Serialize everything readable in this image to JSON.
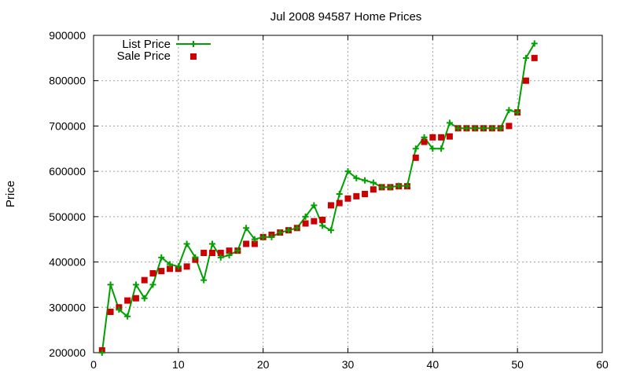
{
  "chart_data": {
    "type": "line",
    "title": "Jul 2008 94587 Home Prices",
    "xlabel": "",
    "ylabel": "Price",
    "xlim": [
      0,
      60
    ],
    "ylim": [
      200000,
      900000
    ],
    "x_ticks": [
      "0",
      "10",
      "20",
      "30",
      "40",
      "50",
      "60"
    ],
    "y_ticks": [
      "200000",
      "300000",
      "400000",
      "500000",
      "600000",
      "700000",
      "800000",
      "900000"
    ],
    "grid": true,
    "legend_position": "top-left",
    "series": [
      {
        "name": "List Price",
        "style": "line-plus",
        "color": "#00a000",
        "x": [
          1,
          2,
          3,
          4,
          5,
          6,
          7,
          8,
          9,
          10,
          11,
          12,
          13,
          14,
          15,
          16,
          17,
          18,
          19,
          20,
          21,
          22,
          23,
          24,
          25,
          26,
          27,
          28,
          29,
          30,
          31,
          32,
          33,
          34,
          35,
          36,
          37,
          38,
          39,
          40,
          41,
          42,
          43,
          44,
          45,
          46,
          47,
          48,
          49,
          50,
          51,
          52
        ],
        "y": [
          200000,
          350000,
          295000,
          280000,
          350000,
          320000,
          350000,
          410000,
          395000,
          390000,
          440000,
          410000,
          360000,
          440000,
          410000,
          415000,
          425000,
          475000,
          450000,
          455000,
          455000,
          465000,
          470000,
          475000,
          500000,
          525000,
          480000,
          470000,
          550000,
          600000,
          585000,
          580000,
          575000,
          565000,
          565000,
          568000,
          568000,
          650000,
          675000,
          650000,
          650000,
          707000,
          695000,
          695000,
          695000,
          695000,
          695000,
          695000,
          735000,
          730000,
          850000,
          882000
        ]
      },
      {
        "name": "Sale Price",
        "style": "square-points",
        "color": "#cc0000",
        "x": [
          1,
          2,
          3,
          4,
          5,
          6,
          7,
          8,
          9,
          10,
          11,
          12,
          13,
          14,
          15,
          16,
          17,
          18,
          19,
          20,
          21,
          22,
          23,
          24,
          25,
          26,
          27,
          28,
          29,
          30,
          31,
          32,
          33,
          34,
          35,
          36,
          37,
          38,
          39,
          40,
          41,
          42,
          43,
          44,
          45,
          46,
          47,
          48,
          49,
          50,
          51,
          52
        ],
        "y": [
          205000,
          290000,
          300000,
          315000,
          320000,
          360000,
          375000,
          380000,
          385000,
          385000,
          390000,
          405000,
          420000,
          420000,
          420000,
          425000,
          425000,
          440000,
          440000,
          455000,
          460000,
          465000,
          470000,
          475000,
          485000,
          490000,
          493000,
          525000,
          530000,
          540000,
          545000,
          550000,
          560000,
          565000,
          565000,
          567000,
          567000,
          630000,
          665000,
          675000,
          675000,
          677000,
          695000,
          695000,
          695000,
          695000,
          695000,
          695000,
          700000,
          730000,
          800000,
          850000
        ]
      }
    ]
  }
}
